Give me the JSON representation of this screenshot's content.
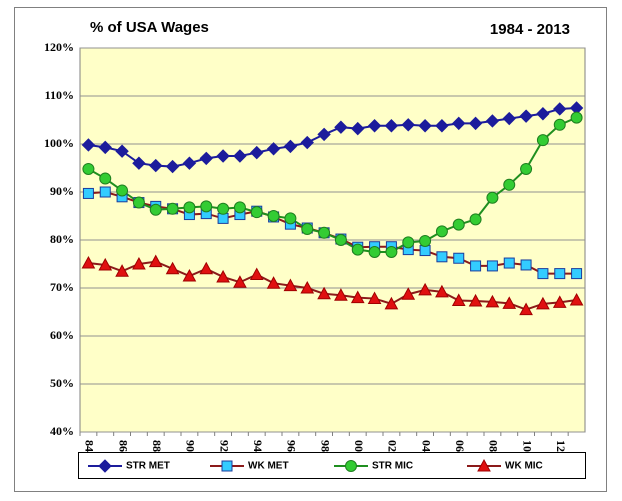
{
  "chart_data": {
    "type": "line",
    "title": "% of USA Wages",
    "subtitle": "1984 - 2013",
    "categories": [
      "84",
      null,
      "86",
      null,
      "88",
      null,
      "90",
      null,
      "92",
      null,
      "94",
      null,
      "96",
      null,
      "98",
      null,
      "00",
      null,
      "02",
      null,
      "04",
      null,
      "06",
      null,
      "08",
      null,
      "10",
      null,
      "12",
      null
    ],
    "ylim": [
      40,
      120
    ],
    "yticks": [
      {
        "value": 40,
        "label": "40%"
      },
      {
        "value": 50,
        "label": "50%"
      },
      {
        "value": 60,
        "label": "60%"
      },
      {
        "value": 70,
        "label": "70%"
      },
      {
        "value": 80,
        "label": "80%"
      },
      {
        "value": 90,
        "label": "90%"
      },
      {
        "value": 100,
        "label": "100%"
      },
      {
        "value": 110,
        "label": "110%"
      },
      {
        "value": 120,
        "label": "120%"
      }
    ],
    "grid": true,
    "legend": "bottom",
    "series": [
      {
        "name": "STR MET",
        "color": "#1c1c9c",
        "marker": "diamond",
        "marker_color": "#1c1c9c",
        "values": [
          99.8,
          99.3,
          98.5,
          96,
          95.5,
          95.3,
          96,
          97,
          97.5,
          97.5,
          98.2,
          99,
          99.5,
          100.3,
          102,
          103.5,
          103.2,
          103.8,
          103.8,
          104,
          103.8,
          103.8,
          104.3,
          104.3,
          104.8,
          105.3,
          105.8,
          106.3,
          107.3,
          107.5
        ]
      },
      {
        "name": "WK MET",
        "color": "#8b1a1a",
        "marker": "square",
        "marker_color": "#33ccff",
        "values": [
          89.7,
          90,
          89,
          87.8,
          87,
          86.5,
          85.3,
          85.5,
          84.5,
          85.3,
          86,
          84.8,
          83.3,
          82.5,
          81.5,
          80.2,
          78.5,
          78.6,
          78.6,
          78,
          77.8,
          76.5,
          76.2,
          74.6,
          74.6,
          75.2,
          74.8,
          73,
          73,
          73
        ]
      },
      {
        "name": "STR MIC",
        "color": "#1f8f1f",
        "marker": "circle",
        "marker_color": "#33cc33",
        "values": [
          94.8,
          92.8,
          90.3,
          87.8,
          86.3,
          86.5,
          86.8,
          87,
          86.5,
          86.8,
          85.8,
          85,
          84.5,
          82.3,
          81.5,
          80,
          78,
          77.5,
          77.5,
          79.5,
          79.8,
          81.8,
          83.2,
          84.3,
          88.8,
          91.5,
          94.8,
          100.8,
          104,
          105.5
        ]
      },
      {
        "name": "WK MIC",
        "color": "#8b1a1a",
        "marker": "triangle",
        "marker_color": "#e01010",
        "values": [
          75.2,
          74.8,
          73.5,
          75,
          75.5,
          74,
          72.5,
          74,
          72.3,
          71.2,
          72.8,
          71,
          70.5,
          70,
          68.8,
          68.5,
          68,
          67.8,
          66.7,
          68.7,
          69.6,
          69.2,
          67.4,
          67.3,
          67.1,
          66.8,
          65.5,
          66.7,
          67,
          67.5
        ]
      }
    ]
  }
}
